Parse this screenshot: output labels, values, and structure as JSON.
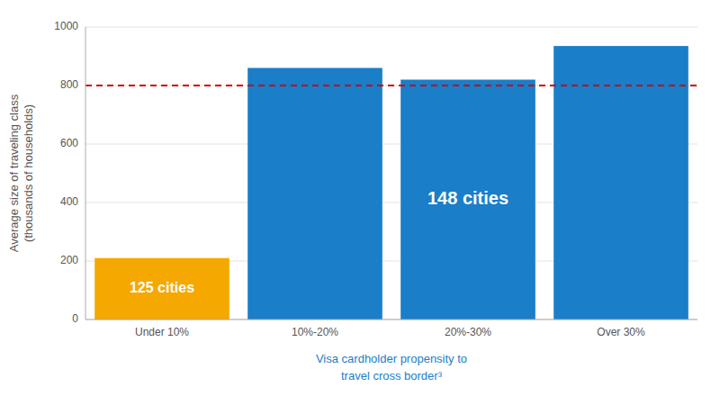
{
  "chart_data": {
    "type": "bar",
    "categories": [
      "Under 10%",
      "10%-20%",
      "20%-30%",
      "Over 30%"
    ],
    "values": [
      210,
      860,
      820,
      935
    ],
    "colors": [
      "#F5A800",
      "#1A7EC8",
      "#1A7EC8",
      "#1A7EC8"
    ],
    "ylabel": "Average size of traveling class\n(thousands of households)",
    "xlabel": "Visa cardholder propensity to\ntravel cross border³",
    "annotations": [
      "125 cities",
      "148 cities"
    ],
    "reference_line": {
      "y": 800,
      "color": "#CC0000",
      "line_style": "dashed"
    },
    "ylim": [
      0,
      1000
    ],
    "yticks": [
      0,
      200,
      400,
      600,
      800,
      1000
    ],
    "grid": true
  }
}
